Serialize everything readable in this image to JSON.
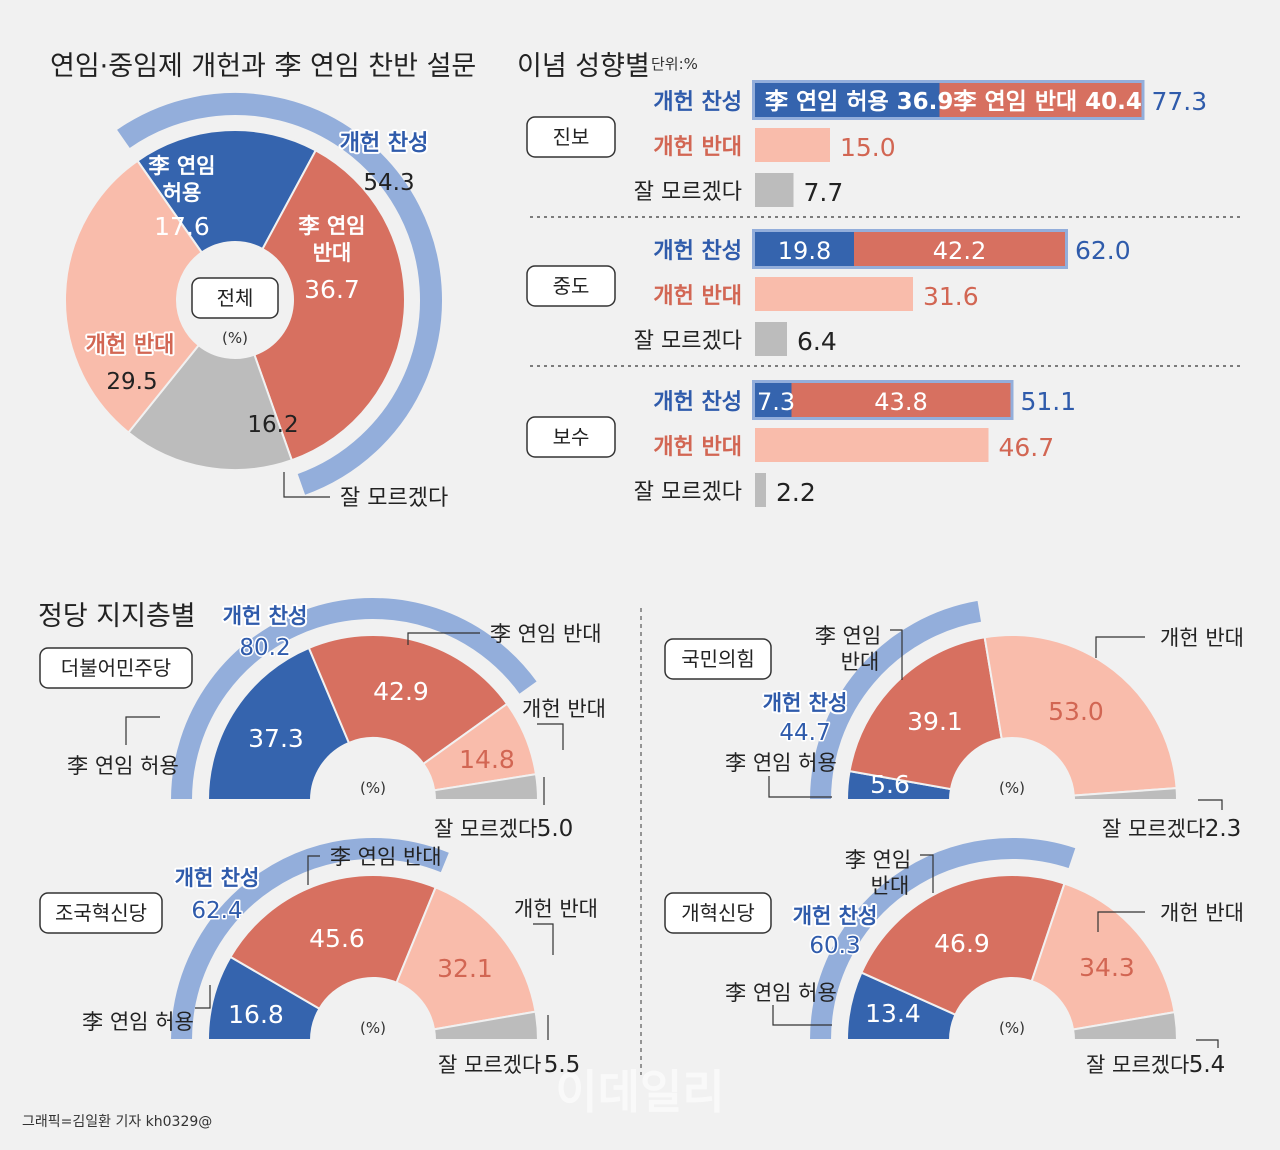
{
  "colors": {
    "background": "#f1f1f1",
    "favor_ring": "#93aedb",
    "allow": "#3564ae",
    "oppose_term": "#d77060",
    "against": "#f9bcab",
    "dont_know": "#bcbcbc",
    "blue_text": "#2f5bab",
    "red_text": "#d26653",
    "dark_text": "#222222"
  },
  "titles": {
    "main": "연임·중임제 개헌과 李 연임 찬반 설문",
    "ideology": "이념 성향별",
    "ideology_unit": "단위:%",
    "party": "정당 지지층별"
  },
  "labels": {
    "favor": "개헌 찬성",
    "against": "개헌 반대",
    "dont_know": "잘 모르겠다",
    "allow": "李 연임 허용",
    "allow_l1": "李 연임",
    "allow_l2": "허용",
    "oppose": "李 연임 반대",
    "oppose_l1": "李 연임",
    "oppose_l2": "반대",
    "whole": "전체",
    "percent": "(%)"
  },
  "credit": "그래픽=김일환 기자 kh0329@",
  "watermark": "이데일리",
  "chart_data": [
    {
      "type": "pie",
      "title": "전체",
      "unit": "%",
      "slices": [
        {
          "label": "李 연임 허용",
          "value": 17.6
        },
        {
          "label": "李 연임 반대",
          "value": 36.7
        },
        {
          "label": "잘 모르겠다",
          "value": 16.2
        },
        {
          "label": "개헌 반대",
          "value": 29.5
        }
      ],
      "totals": {
        "개헌 찬성": 54.3
      }
    },
    {
      "type": "bar",
      "title": "이념 성향별",
      "unit": "%",
      "groups": [
        {
          "name": "진보",
          "favor_allow": 36.9,
          "favor_oppose": 40.4,
          "favor_total": 77.3,
          "against": 15.0,
          "dont_know": 7.7
        },
        {
          "name": "중도",
          "favor_allow": 19.8,
          "favor_oppose": 42.2,
          "favor_total": 62.0,
          "against": 31.6,
          "dont_know": 6.4
        },
        {
          "name": "보수",
          "favor_allow": 7.3,
          "favor_oppose": 43.8,
          "favor_total": 51.1,
          "against": 46.7,
          "dont_know": 2.2
        }
      ]
    },
    {
      "type": "pie",
      "title": "정당 지지층별",
      "unit": "%",
      "parties": [
        {
          "name": "더불어민주당",
          "allow": 37.3,
          "oppose": 42.9,
          "against": 14.8,
          "dont_know": 5.0,
          "favor_total": 80.2
        },
        {
          "name": "국민의힘",
          "allow": 5.6,
          "oppose": 39.1,
          "against": 53.0,
          "dont_know": 2.3,
          "favor_total": 44.7
        },
        {
          "name": "조국혁신당",
          "allow": 16.8,
          "oppose": 45.6,
          "against": 32.1,
          "dont_know": 5.5,
          "favor_total": 62.4
        },
        {
          "name": "개혁신당",
          "allow": 13.4,
          "oppose": 46.9,
          "against": 34.3,
          "dont_know": 5.4,
          "favor_total": 60.3
        }
      ]
    }
  ]
}
